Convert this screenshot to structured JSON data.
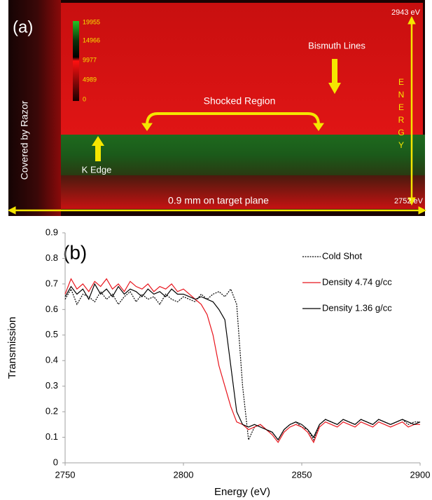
{
  "panel_a": {
    "label": "(a)",
    "colorbar_ticks": [
      19955,
      14966,
      9977,
      4989,
      0
    ],
    "energy_high": "2943 eV",
    "energy_low": "2752 eV",
    "energy_axis": "ENERGY",
    "covered": "Covered by Razor",
    "shocked": "Shocked Region",
    "k_edge": "K Edge",
    "bismuth": "Bismuth Lines",
    "scale": "0.9 mm on target plane"
  },
  "chart_data": {
    "type": "line",
    "panel_label": "(b)",
    "xlabel": "Energy (eV)",
    "ylabel": "Transmission",
    "x": [
      2750,
      2752.5,
      2755,
      2757.5,
      2760,
      2762.5,
      2765,
      2767.5,
      2770,
      2772.5,
      2775,
      2777.5,
      2780,
      2782.5,
      2785,
      2787.5,
      2790,
      2792.5,
      2795,
      2797.5,
      2800,
      2802.5,
      2805,
      2807.5,
      2810,
      2812.5,
      2815,
      2817.5,
      2820,
      2822.5,
      2825,
      2827.5,
      2830,
      2832.5,
      2835,
      2837.5,
      2840,
      2842.5,
      2845,
      2847.5,
      2850,
      2852.5,
      2855,
      2857.5,
      2860,
      2862.5,
      2865,
      2867.5,
      2870,
      2872.5,
      2875,
      2877.5,
      2880,
      2882.5,
      2885,
      2887.5,
      2890,
      2892.5,
      2895,
      2897.5,
      2900
    ],
    "series": [
      {
        "name": "Cold Shot",
        "color": "#000000",
        "dashed": true,
        "values": [
          0.64,
          0.68,
          0.62,
          0.66,
          0.65,
          0.63,
          0.67,
          0.64,
          0.66,
          0.62,
          0.65,
          0.67,
          0.63,
          0.66,
          0.64,
          0.65,
          0.62,
          0.66,
          0.64,
          0.63,
          0.65,
          0.64,
          0.63,
          0.66,
          0.64,
          0.66,
          0.67,
          0.65,
          0.68,
          0.62,
          0.3,
          0.09,
          0.14,
          0.15,
          0.13,
          0.12,
          0.09,
          0.13,
          0.15,
          0.16,
          0.14,
          0.13,
          0.09,
          0.15,
          0.17,
          0.16,
          0.15,
          0.17,
          0.16,
          0.15,
          0.17,
          0.16,
          0.15,
          0.17,
          0.16,
          0.15,
          0.16,
          0.17,
          0.15,
          0.16,
          0.16
        ]
      },
      {
        "name": "Density 4.74 g/cc",
        "color": "#e8141c",
        "dashed": false,
        "values": [
          0.66,
          0.72,
          0.68,
          0.7,
          0.67,
          0.71,
          0.69,
          0.72,
          0.68,
          0.7,
          0.67,
          0.71,
          0.69,
          0.68,
          0.7,
          0.67,
          0.69,
          0.68,
          0.7,
          0.67,
          0.68,
          0.66,
          0.64,
          0.62,
          0.58,
          0.5,
          0.38,
          0.3,
          0.22,
          0.16,
          0.15,
          0.13,
          0.14,
          0.15,
          0.13,
          0.11,
          0.08,
          0.12,
          0.14,
          0.15,
          0.14,
          0.12,
          0.08,
          0.14,
          0.16,
          0.15,
          0.14,
          0.16,
          0.15,
          0.14,
          0.16,
          0.15,
          0.14,
          0.16,
          0.15,
          0.14,
          0.15,
          0.16,
          0.14,
          0.15,
          0.15
        ]
      },
      {
        "name": "Density 1.36 g/cc",
        "color": "#000000",
        "dashed": false,
        "values": [
          0.65,
          0.69,
          0.66,
          0.68,
          0.64,
          0.7,
          0.66,
          0.68,
          0.65,
          0.69,
          0.66,
          0.68,
          0.67,
          0.65,
          0.68,
          0.66,
          0.67,
          0.65,
          0.68,
          0.66,
          0.66,
          0.65,
          0.64,
          0.65,
          0.64,
          0.63,
          0.6,
          0.56,
          0.38,
          0.2,
          0.15,
          0.14,
          0.15,
          0.14,
          0.13,
          0.12,
          0.09,
          0.13,
          0.15,
          0.16,
          0.15,
          0.13,
          0.1,
          0.15,
          0.17,
          0.16,
          0.15,
          0.17,
          0.16,
          0.15,
          0.17,
          0.16,
          0.15,
          0.17,
          0.16,
          0.15,
          0.16,
          0.17,
          0.16,
          0.15,
          0.16
        ]
      }
    ],
    "xlim": [
      2750,
      2900
    ],
    "xticks": [
      2750,
      2800,
      2850,
      2900
    ],
    "ylim": [
      0,
      0.9
    ],
    "yticks": [
      0,
      0.1,
      0.2,
      0.3,
      0.4,
      0.5,
      0.6,
      0.7,
      0.8,
      0.9
    ],
    "legend": "upper right",
    "grid": false
  }
}
